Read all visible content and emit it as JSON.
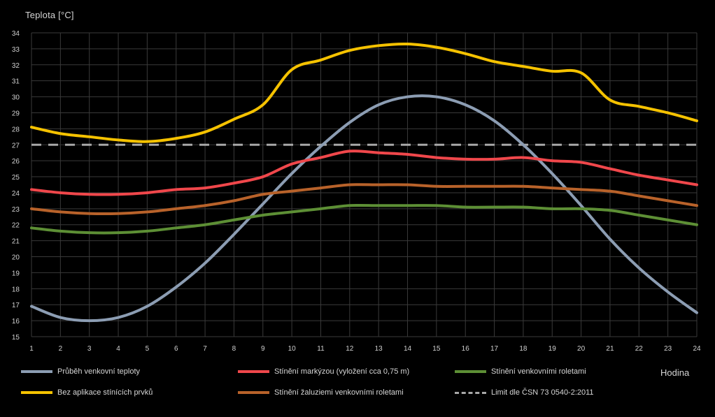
{
  "chart_data": {
    "type": "line",
    "ylabel": "Teplota [°C]",
    "xlabel": "Hodina",
    "x": [
      1,
      2,
      3,
      4,
      5,
      6,
      7,
      8,
      9,
      10,
      11,
      12,
      13,
      14,
      15,
      16,
      17,
      18,
      19,
      20,
      21,
      22,
      23,
      24
    ],
    "xlim": [
      1,
      24
    ],
    "ylim": [
      15,
      34
    ],
    "yticks": [
      15,
      16,
      17,
      18,
      19,
      20,
      21,
      22,
      23,
      24,
      25,
      26,
      27,
      28,
      29,
      30,
      31,
      32,
      33,
      34
    ],
    "grid": true,
    "legend_position": "bottom",
    "series": [
      {
        "name": "Průběh venkovní teploty",
        "color": "#8c9db3",
        "dashed": false,
        "values": [
          16.9,
          16.2,
          16.0,
          16.2,
          16.9,
          18.1,
          19.6,
          21.4,
          23.3,
          25.2,
          26.9,
          28.4,
          29.5,
          30.0,
          30.0,
          29.5,
          28.5,
          27.0,
          25.2,
          23.2,
          21.1,
          19.3,
          17.8,
          16.5
        ]
      },
      {
        "name": "Stínění markýzou (vyložení cca 0,75 m)",
        "color": "#f0474b",
        "dashed": false,
        "values": [
          24.2,
          24.0,
          23.9,
          23.9,
          24.0,
          24.2,
          24.3,
          24.6,
          25.0,
          25.8,
          26.2,
          26.6,
          26.5,
          26.4,
          26.2,
          26.1,
          26.1,
          26.2,
          26.0,
          25.9,
          25.5,
          25.1,
          24.8,
          24.5
        ]
      },
      {
        "name": "Stínění venkovními roletami",
        "color": "#5d8f35",
        "dashed": false,
        "values": [
          21.8,
          21.6,
          21.5,
          21.5,
          21.6,
          21.8,
          22.0,
          22.3,
          22.6,
          22.8,
          23.0,
          23.2,
          23.2,
          23.2,
          23.2,
          23.1,
          23.1,
          23.1,
          23.0,
          23.0,
          22.9,
          22.6,
          22.3,
          22.0
        ]
      },
      {
        "name": "Bez aplikace stínících prvků",
        "color": "#f5c200",
        "dashed": false,
        "values": [
          28.1,
          27.7,
          27.5,
          27.3,
          27.2,
          27.4,
          27.8,
          28.6,
          29.5,
          31.7,
          32.3,
          32.9,
          33.2,
          33.3,
          33.1,
          32.7,
          32.2,
          31.9,
          31.6,
          31.5,
          29.8,
          29.4,
          29.0,
          28.5
        ]
      },
      {
        "name": "Stínění žaluziemi venkovními roletami",
        "color": "#b8622a",
        "dashed": false,
        "values": [
          23.0,
          22.8,
          22.7,
          22.7,
          22.8,
          23.0,
          23.2,
          23.5,
          23.9,
          24.1,
          24.3,
          24.5,
          24.5,
          24.5,
          24.4,
          24.4,
          24.4,
          24.4,
          24.3,
          24.2,
          24.1,
          23.8,
          23.5,
          23.2
        ]
      },
      {
        "name": "Limit dle ČSN 73 0540-2:2011",
        "color": "#a8a8a8",
        "dashed": true,
        "values": [
          27,
          27,
          27,
          27,
          27,
          27,
          27,
          27,
          27,
          27,
          27,
          27,
          27,
          27,
          27,
          27,
          27,
          27,
          27,
          27,
          27,
          27,
          27,
          27
        ]
      }
    ]
  },
  "legend_order": [
    0,
    1,
    2,
    3,
    4,
    5
  ]
}
